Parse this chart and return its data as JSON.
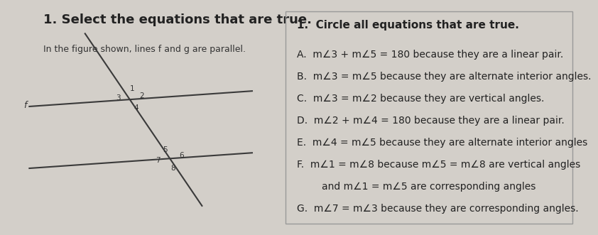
{
  "bg_color": "#d3cfc9",
  "left_panel": {
    "title": "1. Select the equations that are true.",
    "subtitle": "In the figure shown, lines f and g are parallel.",
    "title_fontsize": 13,
    "subtitle_fontsize": 9,
    "label_f": "f",
    "line_color": "#3a3a3a"
  },
  "right_panel": {
    "border_color": "#999999",
    "bg_color": "#dedad4",
    "title": "1.  Circle all equations that are true.",
    "title_fontsize": 11,
    "items": [
      "A.  m∠3 + m∠5 = 180 because they are a linear pair.",
      "B.  m∠3 = m∠5 because they are alternate interior angles.",
      "C.  m∠3 = m∠2 because they are vertical angles.",
      "D.  m∠2 + m∠4 = 180 because they are a linear pair.",
      "E.  m∠4 = m∠5 because they are alternate interior angles",
      "F.  m∠1 = m∠8 because m∠5 = m∠8 are vertical angles",
      "        and m∠1 = m∠5 are corresponding angles",
      "G.  m∠7 = m∠3 because they are corresponding angles."
    ],
    "item_fontsize": 10
  }
}
